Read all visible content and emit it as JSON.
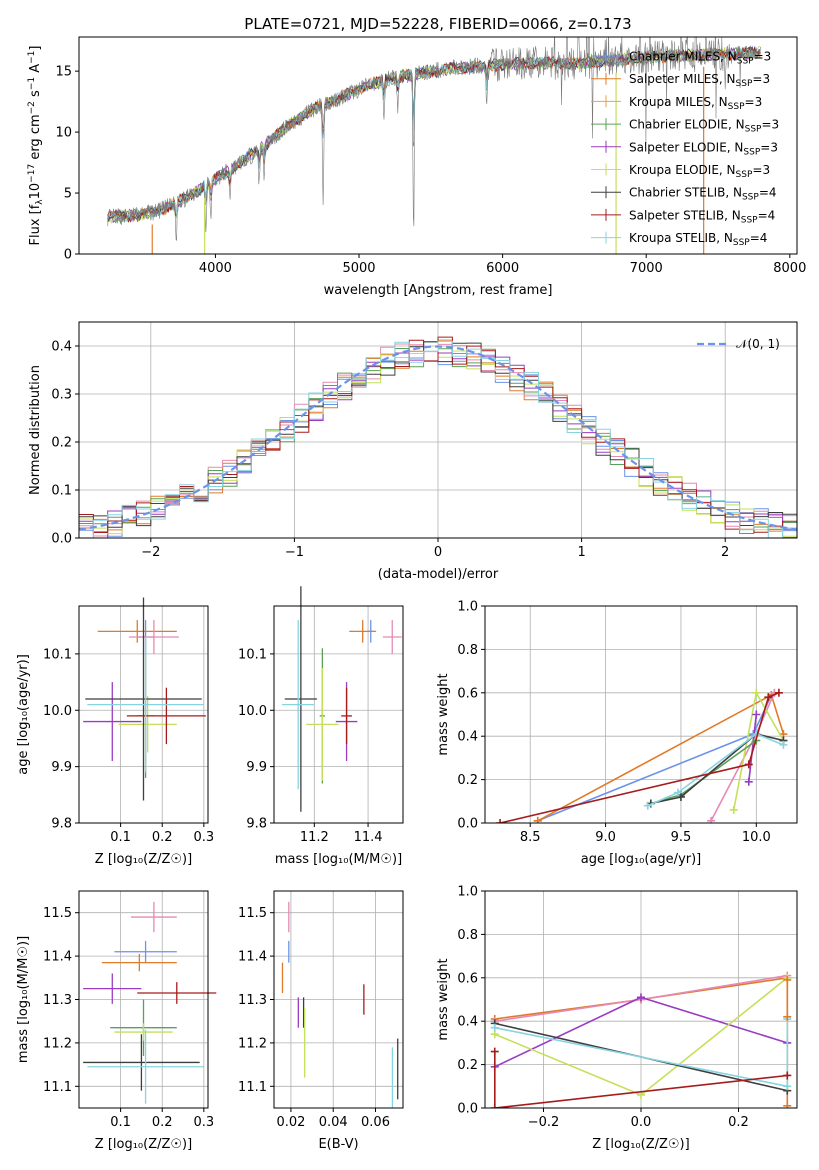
{
  "figure_title": "PLATE=0721, MJD=52228, FIBERID=0066, z=0.173",
  "colors": {
    "Chabrier MILES": "#6b93ea",
    "Salpeter MILES": "#e07b2a",
    "Kroupa MILES": "#e8a24a",
    "Chabrier ELODIE": "#5aa05a",
    "Salpeter ELODIE": "#9a3cc2",
    "Kroupa ELODIE": "#c4e05a",
    "Chabrier STELIB": "#3f3f3f",
    "Salpeter STELIB": "#a61c1c",
    "Kroupa STELIB": "#87d4e0",
    "pink": "#e68ab3",
    "normal": "#6b93ea"
  },
  "chart_data": [
    {
      "id": "spectrum",
      "type": "line",
      "xlabel": "wavelength [Angstrom, rest frame]",
      "ylabel": "Flux [f_λ 10^-17 erg cm^-2 s^-1 A^-1]",
      "xlim": [
        3050,
        8050
      ],
      "ylim": [
        0,
        17.8
      ],
      "xticks": [
        4000,
        5000,
        6000,
        7000,
        8000
      ],
      "yticks": [
        0,
        5,
        10,
        15
      ],
      "legend_position": "upper-right",
      "legend": [
        {
          "model": "Chabrier MILES",
          "nssp": "3"
        },
        {
          "model": "Salpeter MILES",
          "nssp": "3"
        },
        {
          "model": "Kroupa MILES",
          "nssp": "3"
        },
        {
          "model": "Chabrier ELODIE",
          "nssp": "3"
        },
        {
          "model": "Salpeter ELODIE",
          "nssp": "3"
        },
        {
          "model": "Kroupa ELODIE",
          "nssp": "3"
        },
        {
          "model": "Chabrier STELIB",
          "nssp": "4"
        },
        {
          "model": "Salpeter STELIB",
          "nssp": "4"
        },
        {
          "model": "Kroupa STELIB",
          "nssp": "4"
        }
      ],
      "continuum": [
        [
          3250,
          3.0
        ],
        [
          3450,
          3.2
        ],
        [
          3600,
          3.5
        ],
        [
          3800,
          4.6
        ],
        [
          3950,
          5.8
        ],
        [
          4100,
          6.9
        ],
        [
          4300,
          8.5
        ],
        [
          4500,
          10.5
        ],
        [
          4700,
          12.0
        ],
        [
          4900,
          13.0
        ],
        [
          5100,
          14.0
        ],
        [
          5300,
          14.6
        ],
        [
          5500,
          15.0
        ],
        [
          5700,
          15.3
        ],
        [
          5900,
          15.5
        ],
        [
          6100,
          15.6
        ],
        [
          6300,
          15.7
        ],
        [
          6500,
          15.6
        ],
        [
          6700,
          15.8
        ],
        [
          6900,
          16.0
        ],
        [
          7100,
          16.2
        ],
        [
          7300,
          16.3
        ],
        [
          7500,
          16.4
        ],
        [
          7800,
          16.5
        ]
      ],
      "features": [
        {
          "lambda": 3727,
          "depth": 3.4
        },
        {
          "lambda": 3933,
          "depth": 4.0
        },
        {
          "lambda": 3968,
          "depth": 3.5
        },
        {
          "lambda": 4101,
          "depth": 2.5
        },
        {
          "lambda": 4305,
          "depth": 2.8
        },
        {
          "lambda": 4340,
          "depth": 2.5
        },
        {
          "lambda": 4750,
          "depth": 7.8
        },
        {
          "lambda": 5173,
          "depth": 3.5
        },
        {
          "lambda": 5270,
          "depth": 2.5
        },
        {
          "lambda": 5380,
          "depth": 13.5
        },
        {
          "lambda": 5890,
          "depth": 3.5
        }
      ],
      "noise_region": [
        5900,
        7600
      ]
    },
    {
      "id": "residuals",
      "type": "histogram",
      "xlabel": "(data-model)/error",
      "ylabel": "Normed distribution",
      "xlim": [
        -2.5,
        2.5
      ],
      "ylim": [
        0,
        0.45
      ],
      "xticks": [
        -2,
        -1,
        0,
        1,
        2
      ],
      "yticks": [
        0,
        0.1,
        0.2,
        0.3,
        0.4
      ],
      "legend": "𝒩(0, 1)",
      "bin_width": 0.1
    },
    {
      "id": "age-vs-Z",
      "type": "errorbar",
      "xlabel": "Z [log₁₀(Z/Z☉)]",
      "ylabel": "age  [log₁₀(age/yr)]",
      "xlim": [
        0.0,
        0.31
      ],
      "ylim": [
        9.8,
        10.185
      ],
      "xticks": [
        0.1,
        0.2,
        0.3
      ],
      "yticks": [
        9.8,
        9.9,
        10.0,
        10.1
      ],
      "points": [
        {
          "series": "Chabrier MILES",
          "x": 0.16,
          "xerr": 0.02,
          "y": 10.13,
          "yerr": 0.03
        },
        {
          "series": "Salpeter MILES",
          "x": 0.14,
          "xerr": 0.095,
          "y": 10.14,
          "yerr": 0.02
        },
        {
          "series": "pink",
          "x": 0.18,
          "xerr": 0.06,
          "y": 10.13,
          "yerr": 0.03
        },
        {
          "series": "Chabrier ELODIE",
          "x": 0.16,
          "xerr": 0.02,
          "y": 9.99,
          "yerr": 0.11
        },
        {
          "series": "Kroupa ELODIE",
          "x": 0.165,
          "xerr": 0.07,
          "y": 9.975,
          "yerr": 0.05
        },
        {
          "series": "Salpeter ELODIE",
          "x": 0.08,
          "xerr": 0.07,
          "y": 9.98,
          "yerr": 0.07
        },
        {
          "series": "Chabrier STELIB",
          "x": 0.155,
          "xerr": 0.14,
          "y": 10.02,
          "yerr": 0.18
        },
        {
          "series": "Salpeter STELIB",
          "x": 0.21,
          "xerr": 0.095,
          "y": 9.99,
          "yerr": 0.05
        },
        {
          "series": "Kroupa STELIB",
          "x": 0.16,
          "xerr": 0.14,
          "y": 10.01,
          "yerr": 0.12
        }
      ]
    },
    {
      "id": "age-vs-mass",
      "type": "errorbar",
      "xlabel": "mass [log₁₀(M/M☉)]",
      "ylabel": "",
      "xlim": [
        11.05,
        11.53
      ],
      "ylim": [
        9.8,
        10.185
      ],
      "xticks": [
        11.2,
        11.4
      ],
      "yticks": [
        9.8,
        9.9,
        10.0,
        10.1
      ],
      "points": [
        {
          "series": "Chabrier MILES",
          "x": 11.41,
          "xerr": 0.01,
          "y": 10.14,
          "yerr": 0.02
        },
        {
          "series": "Salpeter MILES",
          "x": 11.38,
          "xerr": 0.05,
          "y": 10.14,
          "yerr": 0.02
        },
        {
          "series": "pink",
          "x": 11.49,
          "xerr": 0.035,
          "y": 10.13,
          "yerr": 0.03
        },
        {
          "series": "Chabrier ELODIE",
          "x": 11.23,
          "xerr": 0.01,
          "y": 9.99,
          "yerr": 0.12
        },
        {
          "series": "Kroupa ELODIE",
          "x": 11.23,
          "xerr": 0.06,
          "y": 9.975,
          "yerr": 0.1
        },
        {
          "series": "Salpeter ELODIE",
          "x": 11.32,
          "xerr": 0.04,
          "y": 9.98,
          "yerr": 0.07
        },
        {
          "series": "Chabrier STELIB",
          "x": 11.15,
          "xerr": 0.06,
          "y": 10.02,
          "yerr": 0.2
        },
        {
          "series": "Salpeter STELIB",
          "x": 11.32,
          "xerr": 0.02,
          "y": 9.99,
          "yerr": 0.05
        },
        {
          "series": "Kroupa STELIB",
          "x": 11.14,
          "xerr": 0.06,
          "y": 10.01,
          "yerr": 0.15
        }
      ]
    },
    {
      "id": "weight-vs-age",
      "type": "line",
      "xlabel": "age  [log₁₀(age/yr)]",
      "ylabel": "mass weight",
      "xlim": [
        8.2,
        10.27
      ],
      "ylim": [
        0,
        1.0
      ],
      "xticks": [
        8.5,
        9.0,
        9.5,
        10.0
      ],
      "yticks": [
        0.0,
        0.2,
        0.4,
        0.6,
        0.8,
        1.0
      ],
      "series": [
        {
          "name": "Chabrier MILES",
          "points": [
            [
              10.1,
              0.59
            ],
            [
              9.98,
              0.41
            ],
            [
              8.55,
              0.01
            ]
          ]
        },
        {
          "name": "Salpeter MILES",
          "points": [
            [
              8.55,
              0.01
            ],
            [
              10.1,
              0.59
            ],
            [
              10.18,
              0.41
            ]
          ]
        },
        {
          "name": "pink",
          "points": [
            [
              9.7,
              0.01
            ],
            [
              10.0,
              0.41
            ],
            [
              10.12,
              0.6
            ]
          ]
        },
        {
          "name": "Kroupa ELODIE",
          "points": [
            [
              9.85,
              0.06
            ],
            [
              10.0,
              0.6
            ],
            [
              10.18,
              0.38
            ]
          ]
        },
        {
          "name": "Salpeter ELODIE",
          "points": [
            [
              9.95,
              0.19
            ],
            [
              10.0,
              0.5
            ]
          ]
        },
        {
          "name": "Chabrier ELODIE",
          "points": [
            [
              9.3,
              0.09
            ],
            [
              9.5,
              0.13
            ],
            [
              10.0,
              0.38
            ]
          ]
        },
        {
          "name": "Chabrier STELIB",
          "points": [
            [
              9.3,
              0.09
            ],
            [
              9.5,
              0.12
            ],
            [
              10.0,
              0.41
            ],
            [
              10.18,
              0.38
            ]
          ]
        },
        {
          "name": "Kroupa STELIB",
          "points": [
            [
              9.28,
              0.08
            ],
            [
              9.48,
              0.14
            ],
            [
              10.0,
              0.41
            ],
            [
              10.18,
              0.36
            ]
          ]
        },
        {
          "name": "Salpeter STELIB",
          "points": [
            [
              8.3,
              0.0
            ],
            [
              9.95,
              0.27
            ],
            [
              10.08,
              0.58
            ],
            [
              10.15,
              0.6
            ]
          ]
        }
      ]
    },
    {
      "id": "mass-vs-Z",
      "type": "errorbar",
      "xlabel": "Z [log₁₀(Z/Z☉)]",
      "ylabel": "mass [log₁₀(M/M☉)]",
      "xlim": [
        0.0,
        0.31
      ],
      "ylim": [
        11.05,
        11.55
      ],
      "xticks": [
        0.1,
        0.2,
        0.3
      ],
      "yticks": [
        11.1,
        11.2,
        11.3,
        11.4,
        11.5
      ],
      "points": [
        {
          "series": "pink",
          "x": 0.18,
          "xerr": 0.055,
          "y": 11.49,
          "yerr": 0.035
        },
        {
          "series": "Chabrier MILES",
          "x": 0.16,
          "xerr": 0.075,
          "y": 11.41,
          "yerr": 0.025
        },
        {
          "series": "Salpeter MILES",
          "x": 0.145,
          "xerr": 0.09,
          "y": 11.385,
          "yerr": 0.02
        },
        {
          "series": "Salpeter ELODIE",
          "x": 0.08,
          "xerr": 0.07,
          "y": 11.325,
          "yerr": 0.035
        },
        {
          "series": "Salpeter STELIB",
          "x": 0.235,
          "xerr": 0.095,
          "y": 11.315,
          "yerr": 0.025
        },
        {
          "series": "Chabrier ELODIE",
          "x": 0.155,
          "xerr": 0.08,
          "y": 11.235,
          "yerr": 0.065
        },
        {
          "series": "Kroupa ELODIE",
          "x": 0.155,
          "xerr": 0.07,
          "y": 11.225,
          "yerr": 0.02
        },
        {
          "series": "Chabrier STELIB",
          "x": 0.15,
          "xerr": 0.14,
          "y": 11.155,
          "yerr": 0.065
        },
        {
          "series": "Kroupa STELIB",
          "x": 0.16,
          "xerr": 0.14,
          "y": 11.145,
          "yerr": 0.085
        }
      ]
    },
    {
      "id": "mass-vs-ebv",
      "type": "errorbar",
      "xlabel": "E(B-V)",
      "ylabel": "",
      "xlim": [
        0.012,
        0.073
      ],
      "ylim": [
        11.05,
        11.55
      ],
      "xticks": [
        0.02,
        0.04,
        0.06
      ],
      "yticks": [
        11.1,
        11.2,
        11.3,
        11.4,
        11.5
      ],
      "points": [
        {
          "series": "pink",
          "x": 0.019,
          "xerr": 0,
          "y": 11.49,
          "yerr": 0.035
        },
        {
          "series": "Chabrier MILES",
          "x": 0.019,
          "xerr": 0,
          "y": 11.41,
          "yerr": 0.025
        },
        {
          "series": "Salpeter MILES",
          "x": 0.016,
          "xerr": 0,
          "y": 11.35,
          "yerr": 0.035
        },
        {
          "series": "Salpeter ELODIE",
          "x": 0.0235,
          "xerr": 0,
          "y": 11.27,
          "yerr": 0.035
        },
        {
          "series": "Chabrier STELIB",
          "x": 0.026,
          "xerr": 0,
          "y": 11.27,
          "yerr": 0.035
        },
        {
          "series": "Kroupa ELODIE",
          "x": 0.0265,
          "xerr": 0,
          "y": 11.2,
          "yerr": 0.08
        },
        {
          "series": "Salpeter STELIB",
          "x": 0.0545,
          "xerr": 0,
          "y": 11.3,
          "yerr": 0.035
        },
        {
          "series": "Kroupa STELIB",
          "x": 0.068,
          "xerr": 0,
          "y": 11.12,
          "yerr": 0.07
        },
        {
          "series": "Chabrier STELIB",
          "x": 0.0705,
          "xerr": 0,
          "y": 11.14,
          "yerr": 0.07
        }
      ]
    },
    {
      "id": "weight-vs-Z",
      "type": "line",
      "xlabel": "Z [log₁₀(Z/Z☉)]",
      "ylabel": "mass weight",
      "xlim": [
        -0.32,
        0.32
      ],
      "ylim": [
        0,
        1.0
      ],
      "xticks": [
        -0.2,
        0.0,
        0.2
      ],
      "yticks": [
        0.0,
        0.2,
        0.4,
        0.6,
        0.8,
        1.0
      ],
      "series": [
        {
          "name": "Salpeter MILES",
          "points": [
            [
              -0.3,
              0.41
            ],
            [
              0.0,
              0.5
            ],
            [
              0.3,
              0.6
            ],
            [
              0.3,
              0.01
            ]
          ]
        },
        {
          "name": "pink",
          "points": [
            [
              -0.3,
              0.4
            ],
            [
              0.0,
              0.5
            ],
            [
              0.3,
              0.61
            ]
          ]
        },
        {
          "name": "Salpeter ELODIE",
          "points": [
            [
              -0.3,
              0.19
            ],
            [
              0.0,
              0.51
            ],
            [
              0.3,
              0.3
            ]
          ]
        },
        {
          "name": "Kroupa ELODIE",
          "points": [
            [
              -0.3,
              0.34
            ],
            [
              0.0,
              0.06
            ],
            [
              0.3,
              0.6
            ]
          ]
        },
        {
          "name": "Chabrier STELIB",
          "points": [
            [
              -0.3,
              0.39
            ],
            [
              0.3,
              0.08
            ]
          ]
        },
        {
          "name": "Kroupa STELIB",
          "points": [
            [
              -0.3,
              0.37
            ],
            [
              0.3,
              0.1
            ],
            [
              0.3,
              0.41
            ]
          ]
        },
        {
          "name": "Salpeter STELIB",
          "points": [
            [
              -0.3,
              0.26
            ],
            [
              -0.3,
              0.0
            ],
            [
              0.3,
              0.15
            ]
          ]
        },
        {
          "name": "Salpeter MILES",
          "points": [
            [
              0.3,
              0.59
            ],
            [
              0.3,
              0.42
            ]
          ]
        }
      ]
    }
  ]
}
